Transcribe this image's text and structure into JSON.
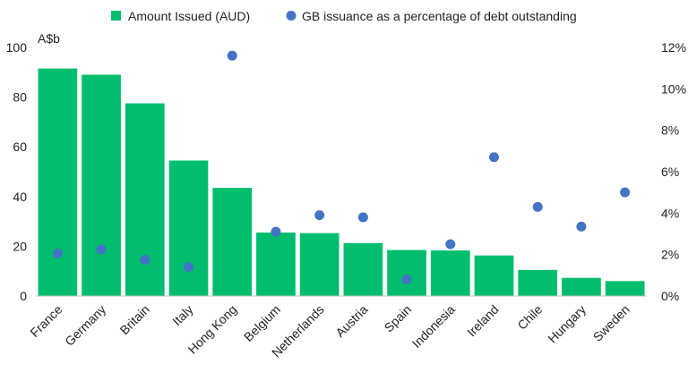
{
  "chart_data": {
    "type": "bar",
    "categories": [
      "France",
      "Germany",
      "Britain",
      "Italy",
      "Hong Kong",
      "Belgium",
      "Netherlands",
      "Austria",
      "Spain",
      "Indonesia",
      "Ireland",
      "Chile",
      "Hungary",
      "Sweden"
    ],
    "series": [
      {
        "name": "Amount Issued (AUD)",
        "type": "bar",
        "axis": "left",
        "color": "#00BE6E",
        "values": [
          91.5,
          89,
          77.5,
          54.5,
          43.5,
          25.5,
          25.3,
          21.3,
          18.5,
          18.3,
          16.3,
          10.5,
          7.3,
          6.0
        ]
      },
      {
        "name": "GB issuance as a percentage of debt outstanding",
        "type": "scatter",
        "axis": "right",
        "color": "#4472C4",
        "values": [
          2.05,
          2.25,
          1.75,
          1.4,
          11.6,
          3.1,
          3.9,
          3.8,
          0.8,
          2.5,
          6.7,
          4.3,
          3.35,
          5.0
        ]
      }
    ],
    "ylabel": "A$b",
    "ylim": [
      0,
      100
    ],
    "y_ticks": [
      "0",
      "20",
      "40",
      "60",
      "80",
      "100"
    ],
    "y2lim": [
      0,
      12
    ],
    "y2_ticks": [
      "0%",
      "2%",
      "4%",
      "6%",
      "8%",
      "10%",
      "12%"
    ],
    "grid": false,
    "legend_position": "top"
  }
}
